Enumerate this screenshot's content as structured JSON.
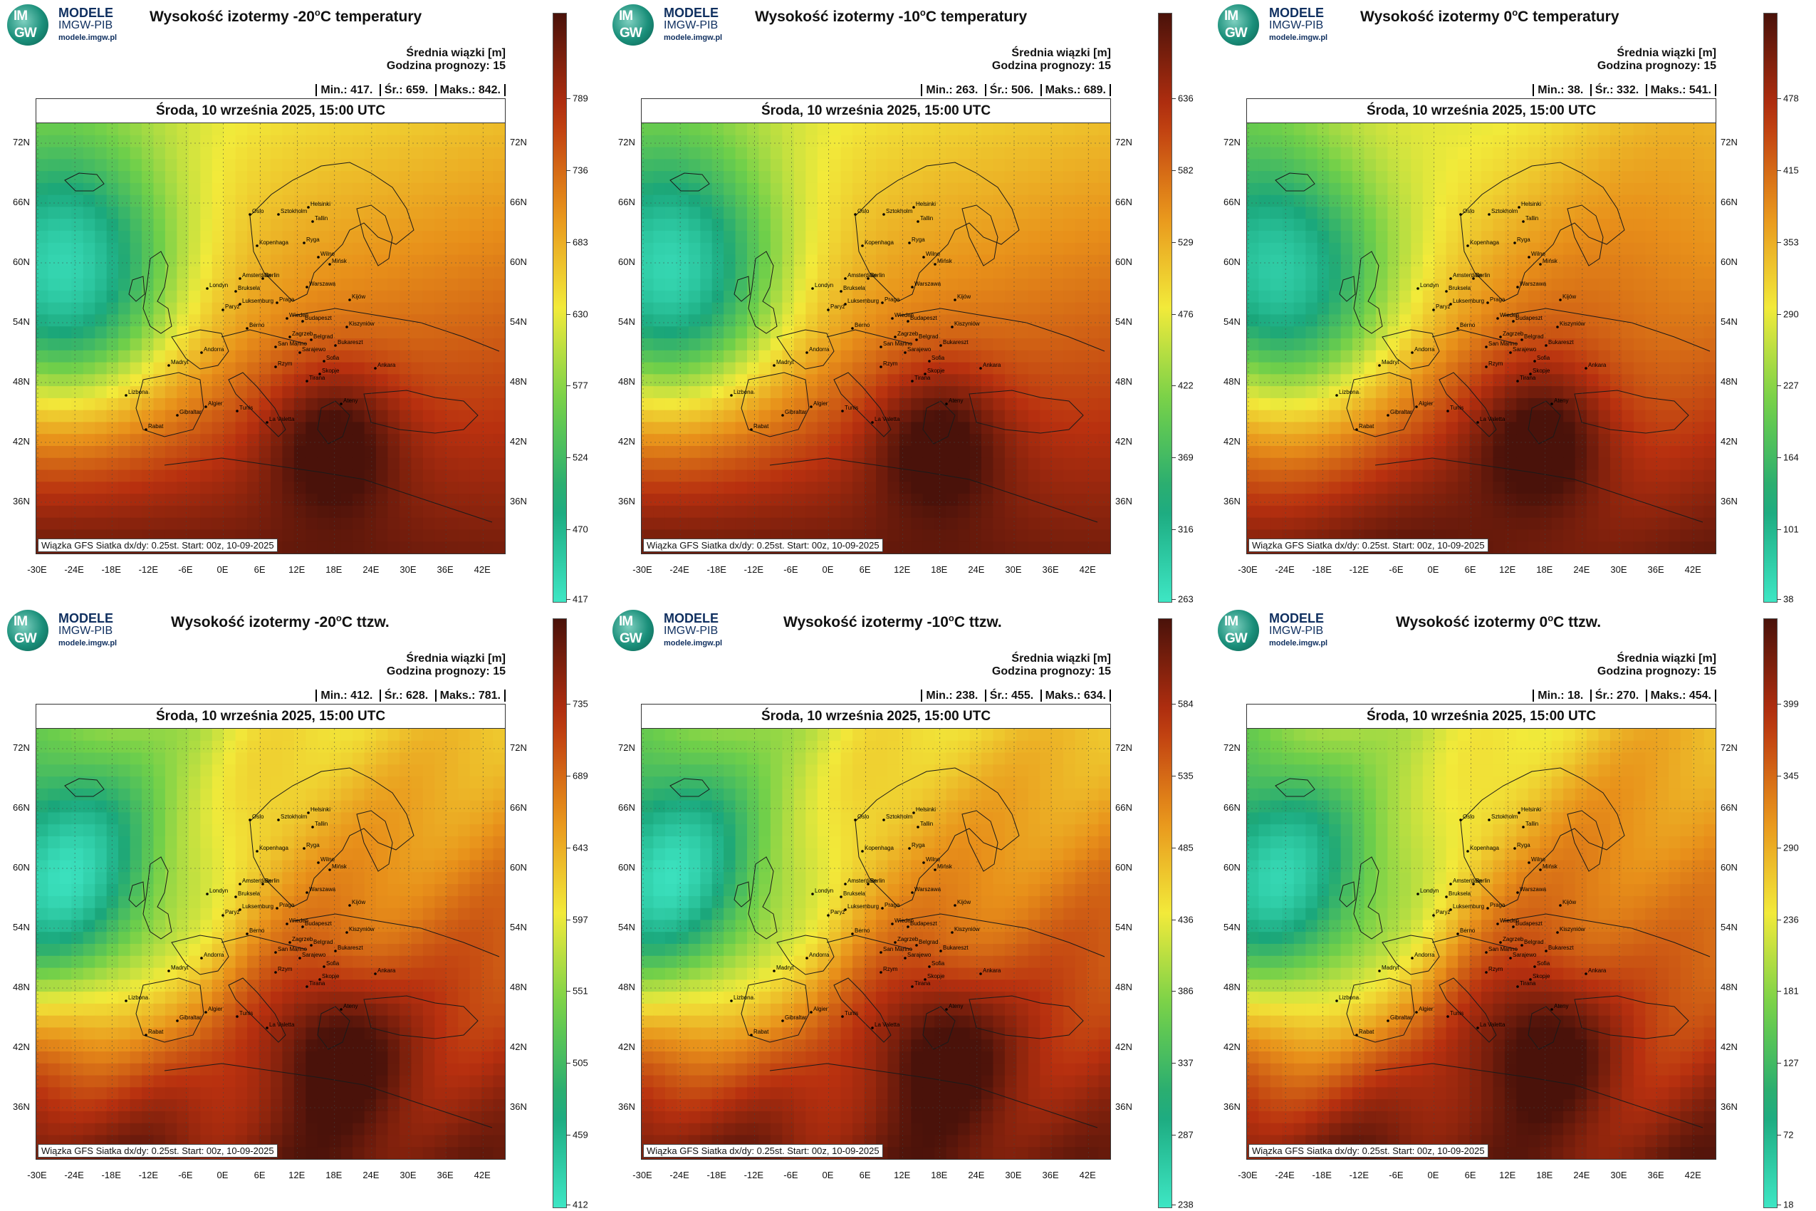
{
  "logo": {
    "badge_top": "IM",
    "badge_bottom": "GW",
    "line1": "MODELE",
    "line2": "IMGW-PIB",
    "line3": "modele.imgw.pl"
  },
  "common": {
    "info_line1": "Średnia wiązki [m]",
    "info_line2": "Godzina prognozy: 15",
    "date_bar": "Środa, 10 września 2025, 15:00 UTC",
    "footer": "Wiązka GFS Siatka dx/dy: 0.25st. Start: 00z, 10-09-2025",
    "stat_min_label": "Min.:",
    "stat_mean_label": "Śr.:",
    "stat_max_label": "Maks.:",
    "lat_labels": [
      "72N",
      "66N",
      "60N",
      "54N",
      "48N",
      "42N",
      "36N"
    ],
    "lon_labels": [
      "-30E",
      "-24E",
      "-18E",
      "-12E",
      "-6E",
      "0E",
      "6E",
      "12E",
      "18E",
      "24E",
      "30E",
      "36E",
      "42E"
    ]
  },
  "panels": [
    {
      "title_pre": "Wysokość izotermy -20",
      "title_sup": "o",
      "title_post": "C temperatury",
      "min": "417.",
      "mean": "659.",
      "max": "842.",
      "colorbar": [
        "789",
        "736",
        "683",
        "630",
        "577",
        "524",
        "470",
        "417"
      ]
    },
    {
      "title_pre": "Wysokość izotermy -10",
      "title_sup": "o",
      "title_post": "C temperatury",
      "min": "263.",
      "mean": "506.",
      "max": "689.",
      "colorbar": [
        "636",
        "582",
        "529",
        "476",
        "422",
        "369",
        "316",
        "263"
      ]
    },
    {
      "title_pre": "Wysokość izotermy 0",
      "title_sup": "o",
      "title_post": "C temperatury",
      "min": "38.",
      "mean": "332.",
      "max": "541.",
      "colorbar": [
        "478",
        "415",
        "353",
        "290",
        "227",
        "164",
        "101",
        "38"
      ]
    },
    {
      "title_pre": "Wysokość izotermy -20",
      "title_sup": "o",
      "title_post": "C ttzw.",
      "min": "412.",
      "mean": "628.",
      "max": "781.",
      "colorbar": [
        "735",
        "689",
        "643",
        "597",
        "551",
        "505",
        "459",
        "412"
      ]
    },
    {
      "title_pre": "Wysokość izotermy -10",
      "title_sup": "o",
      "title_post": "C ttzw.",
      "min": "238.",
      "mean": "455.",
      "max": "634.",
      "colorbar": [
        "584",
        "535",
        "485",
        "436",
        "386",
        "337",
        "287",
        "238"
      ]
    },
    {
      "title_pre": "Wysokość izotermy 0",
      "title_sup": "o",
      "title_post": "C ttzw.",
      "min": "18.",
      "mean": "270.",
      "max": "454.",
      "colorbar": [
        "399",
        "345",
        "290",
        "236",
        "181",
        "127",
        "72",
        "18"
      ]
    }
  ],
  "map_cities": [
    "Oslo",
    "Sztokholm",
    "Helsinki",
    "Tallin",
    "Ryga",
    "Kopenhaga",
    "Wilno",
    "Mińsk",
    "Amsterdam",
    "Londyn",
    "Berlin",
    "Bruksela",
    "Warszawa",
    "Luksemburg",
    "Praga",
    "Paryż",
    "Kijów",
    "Wiedeń",
    "Budapeszt",
    "Berno",
    "Kiszyniów",
    "Zagrzeb",
    "Belgrad",
    "Bukareszt",
    "San Marino",
    "Sarajewo",
    "Andorra",
    "Sofia",
    "Rzym",
    "Skopje",
    "Madryt",
    "Ankara",
    "Tirana",
    "Lizbona",
    "Ateny",
    "Algier",
    "Tunis",
    "Gibraltar",
    "La Valetta",
    "Rabat"
  ],
  "colors": {
    "low": "#3ee6c4",
    "mid_low": "#1aa67a",
    "mid": "#f2ea3a",
    "mid_high": "#e8901a",
    "high": "#b8300f",
    "top": "#4a120a"
  }
}
